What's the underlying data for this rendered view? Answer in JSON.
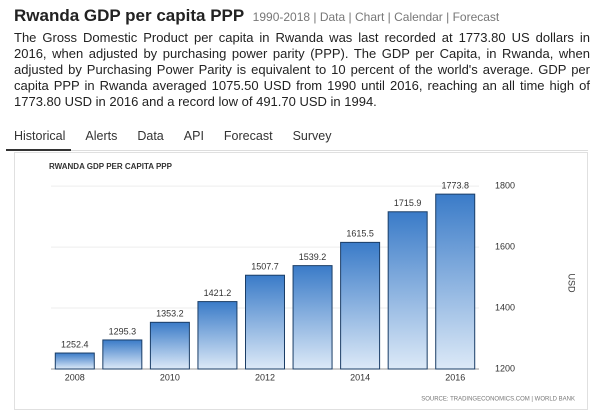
{
  "header": {
    "title": "Rwanda GDP per capita PPP",
    "links": "1990-2018 | Data | Chart | Calendar | Forecast"
  },
  "description": "The Gross Domestic Product per capita in Rwanda was last recorded at 1773.80 US dollars in 2016, when adjusted by purchasing power parity (PPP). The GDP per Capita, in Rwanda, when adjusted by Purchasing Power Parity is equivalent to 10 percent of the world's average. GDP per capita PPP in Rwanda averaged 1075.50 USD from 1990 until 2016, reaching an all time high of 1773.80 USD in 2016 and a record low of 491.70 USD in 1994.",
  "tabs": [
    "Historical",
    "Alerts",
    "Data",
    "API",
    "Forecast",
    "Survey"
  ],
  "chart_data": {
    "type": "bar",
    "title": "RWANDA GDP PER CAPITA PPP",
    "categories": [
      "2008",
      null,
      "2010",
      null,
      "2012",
      null,
      "2014",
      null,
      "2016"
    ],
    "values": [
      1252.4,
      1295.3,
      1353.2,
      1421.2,
      1507.7,
      1539.2,
      1615.5,
      1715.9,
      1773.8
    ],
    "color": "#2f6db5",
    "ylim": [
      1200,
      1830
    ],
    "yticks": [
      1200,
      1400,
      1600,
      1800
    ],
    "grid": true,
    "y_label": "USD",
    "source": "SOURCE: TRADINGECONOMICS.COM | WORLD BANK"
  }
}
